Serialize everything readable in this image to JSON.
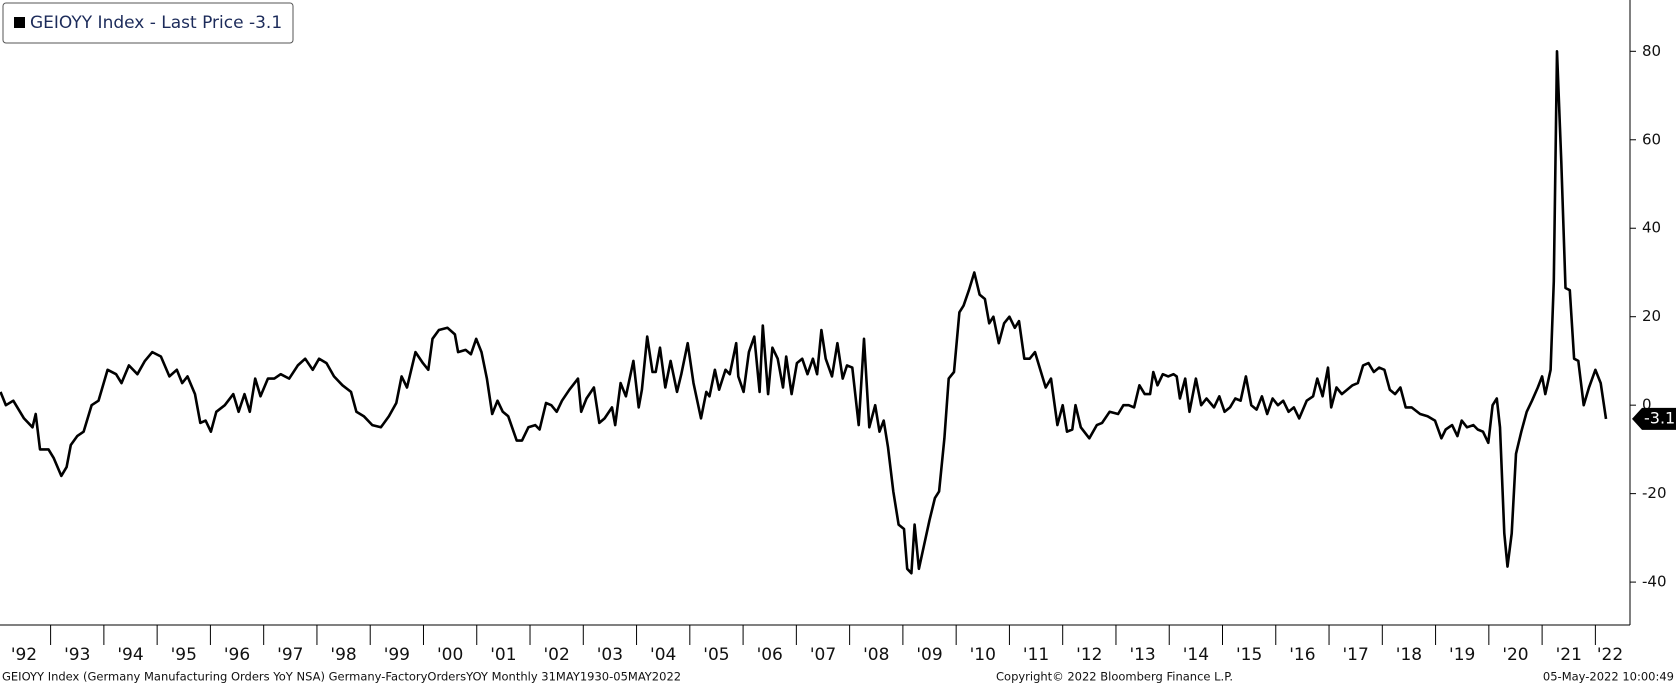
{
  "chart_data": {
    "type": "line",
    "series": [
      {
        "name": "GEIOYY Index - Last Price -3.1",
        "color": "#000000",
        "x": [
          1992.06,
          1992.16,
          1992.3,
          1992.5,
          1992.66,
          1992.72,
          1992.8,
          1992.96,
          1993.06,
          1993.2,
          1993.3,
          1993.38,
          1993.5,
          1993.62,
          1993.77,
          1993.9,
          1994.07,
          1994.23,
          1994.33,
          1994.47,
          1994.63,
          1994.77,
          1994.91,
          1995.07,
          1995.23,
          1995.37,
          1995.47,
          1995.57,
          1995.71,
          1995.81,
          1995.91,
          1996.01,
          1996.11,
          1996.27,
          1996.43,
          1996.53,
          1996.64,
          1996.74,
          1996.84,
          1996.94,
          1997.08,
          1997.2,
          1997.32,
          1997.48,
          1997.64,
          1997.78,
          1997.92,
          1998.04,
          1998.18,
          1998.32,
          1998.48,
          1998.64,
          1998.74,
          1998.88,
          1999.04,
          1999.2,
          1999.35,
          1999.49,
          1999.59,
          1999.69,
          1999.85,
          1999.99,
          2000.09,
          2000.17,
          2000.29,
          2000.45,
          2000.59,
          2000.65,
          2000.79,
          2000.89,
          2000.99,
          2001.09,
          2001.19,
          2001.29,
          2001.39,
          2001.49,
          2001.59,
          2001.75,
          2001.85,
          2001.97,
          2002.1,
          2002.18,
          2002.3,
          2002.4,
          2002.5,
          2002.6,
          2002.74,
          2002.9,
          2002.96,
          2003.06,
          2003.2,
          2003.3,
          2003.4,
          2003.54,
          2003.6,
          2003.7,
          2003.8,
          2003.94,
          2004.04,
          2004.1,
          2004.2,
          2004.3,
          2004.36,
          2004.44,
          2004.54,
          2004.64,
          2004.76,
          2004.84,
          2004.96,
          2005.07,
          2005.21,
          2005.31,
          2005.37,
          2005.47,
          2005.55,
          2005.67,
          2005.75,
          2005.87,
          2005.91,
          2006.01,
          2006.11,
          2006.21,
          2006.31,
          2006.37,
          2006.47,
          2006.55,
          2006.65,
          2006.75,
          2006.81,
          2006.91,
          2007.01,
          2007.11,
          2007.21,
          2007.31,
          2007.39,
          2007.47,
          2007.55,
          2007.67,
          2007.77,
          2007.87,
          2007.95,
          2008.05,
          2008.17,
          2008.27,
          2008.37,
          2008.48,
          2008.56,
          2008.64,
          2008.72,
          2008.82,
          2008.92,
          2009.02,
          2009.08,
          2009.16,
          2009.22,
          2009.3,
          2009.4,
          2009.5,
          2009.6,
          2009.68,
          2009.78,
          2009.86,
          2009.96,
          2010.06,
          2010.14,
          2010.24,
          2010.34,
          2010.44,
          2010.54,
          2010.62,
          2010.7,
          2010.8,
          2010.9,
          2011.0,
          2011.1,
          2011.18,
          2011.28,
          2011.38,
          2011.48,
          2011.58,
          2011.68,
          2011.78,
          2011.9,
          2012.0,
          2012.08,
          2012.18,
          2012.24,
          2012.34,
          2012.5,
          2012.64,
          2012.74,
          2012.88,
          2013.04,
          2013.14,
          2013.24,
          2013.34,
          2013.44,
          2013.54,
          2013.64,
          2013.7,
          2013.78,
          2013.88,
          2013.98,
          2014.08,
          2014.14,
          2014.2,
          2014.3,
          2014.38,
          2014.5,
          2014.6,
          2014.7,
          2014.84,
          2014.94,
          2015.04,
          2015.14,
          2015.24,
          2015.34,
          2015.44,
          2015.54,
          2015.64,
          2015.74,
          2015.84,
          2015.94,
          2016.04,
          2016.14,
          2016.24,
          2016.34,
          2016.44,
          2016.58,
          2016.7,
          2016.78,
          2016.88,
          2016.98,
          2017.04,
          2017.14,
          2017.24,
          2017.34,
          2017.44,
          2017.54,
          2017.64,
          2017.74,
          2017.84,
          2017.94,
          2018.04,
          2018.14,
          2018.24,
          2018.34,
          2018.44,
          2018.55,
          2018.71,
          2018.85,
          2018.99,
          2019.11,
          2019.19,
          2019.31,
          2019.41,
          2019.49,
          2019.59,
          2019.71,
          2019.79,
          2019.89,
          2019.99,
          2020.07,
          2020.15,
          2020.21,
          2020.29,
          2020.35,
          2020.43,
          2020.51,
          2020.61,
          2020.71,
          2020.81,
          2020.92,
          2021.0,
          2021.06,
          2021.16,
          2021.22,
          2021.28,
          2021.36,
          2021.44,
          2021.52,
          2021.6,
          2021.68,
          2021.78,
          2021.88,
          2022.0,
          2022.1,
          2022.2
        ],
        "values": [
          3,
          0,
          1,
          -3,
          -5,
          -2,
          -10,
          -10,
          -12,
          -16,
          -14,
          -9,
          -7,
          -6,
          0,
          1,
          8,
          7,
          5,
          9,
          7,
          10,
          12,
          11,
          6.5,
          8,
          5,
          6.5,
          2.5,
          -4,
          -3.5,
          -6,
          -1.5,
          0,
          2.5,
          -1.5,
          2.5,
          -1.5,
          6,
          2,
          6,
          6,
          7,
          6,
          9,
          10.5,
          8,
          10.5,
          9.5,
          6.5,
          4.5,
          3,
          -1.5,
          -2.5,
          -4.5,
          -5,
          -2.5,
          0.5,
          6.5,
          4,
          12,
          9.5,
          8,
          15,
          17,
          17.5,
          16,
          12,
          12.5,
          11.5,
          15,
          12,
          6,
          -2,
          1,
          -1.5,
          -2.5,
          -8,
          -8,
          -5,
          -4.5,
          -5.5,
          0.5,
          0,
          -1.5,
          1,
          3.5,
          6,
          -1.5,
          1.5,
          4,
          -4,
          -3,
          -0.5,
          -4.5,
          5,
          2,
          10,
          -0.5,
          3.5,
          15.5,
          7.5,
          7.5,
          13,
          4,
          10,
          3,
          7,
          14,
          5,
          -3,
          3,
          2,
          8,
          3.5,
          8,
          7,
          14,
          6.5,
          3,
          12,
          15.5,
          3,
          18,
          2.5,
          13,
          10.5,
          4,
          11,
          2.5,
          9.5,
          10.5,
          7,
          10.5,
          7,
          17,
          10.5,
          6.5,
          14,
          6,
          9,
          8.5,
          -4.5,
          15,
          -5,
          0,
          -6,
          -3.5,
          -9.5,
          -19.5,
          -27,
          -28,
          -37,
          -38,
          -27,
          -37,
          -31.5,
          -26,
          -21,
          -19.5,
          -7.5,
          6,
          7.5,
          21,
          22.5,
          26,
          30,
          25,
          24,
          18.5,
          20,
          14,
          18.5,
          20,
          17.5,
          19,
          10.5,
          10.5,
          12,
          8,
          4,
          6,
          -4.5,
          0,
          -6,
          -5.5,
          0,
          -5,
          -7.5,
          -4.5,
          -4,
          -1.5,
          -2,
          0,
          0,
          -0.5,
          4.5,
          2.5,
          2.5,
          7.5,
          4.5,
          7,
          6.5,
          7,
          6.5,
          1.5,
          6,
          -1.5,
          6,
          0,
          1.5,
          -0.5,
          2,
          -1.5,
          -0.5,
          1.5,
          1,
          6.5,
          0,
          -1,
          2,
          -2,
          1.5,
          0,
          1,
          -1.5,
          -0.5,
          -3,
          1,
          2,
          6,
          2,
          8.5,
          -0.5,
          4,
          2.5,
          3.5,
          4.5,
          5,
          9,
          9.5,
          7.5,
          8.5,
          8,
          3.5,
          2.5,
          4,
          -0.5,
          -0.5,
          -2,
          -2.5,
          -3.5,
          -7.5,
          -5.5,
          -4.5,
          -7,
          -3.5,
          -5,
          -4.5,
          -5.5,
          -6,
          -8.5,
          0,
          1.5,
          -5,
          -29,
          -36.5,
          -29,
          -11,
          -6,
          -1.5,
          1,
          4,
          6.5,
          2.5,
          8,
          28,
          80,
          55,
          26.5,
          26,
          10.5,
          10,
          0,
          4,
          8,
          5,
          -3.1
        ]
      }
    ],
    "last_price": -3.1,
    "xlim": [
      1992.05,
      2022.65
    ],
    "ylim": [
      -49.7,
      91.6
    ],
    "yticks": [
      80,
      60,
      40,
      20,
      0,
      -20,
      -40
    ],
    "xticks": [
      {
        "value": 1992,
        "label": "'92"
      },
      {
        "value": 1993,
        "label": "'93"
      },
      {
        "value": 1994,
        "label": "'94"
      },
      {
        "value": 1995,
        "label": "'95"
      },
      {
        "value": 1996,
        "label": "'96"
      },
      {
        "value": 1997,
        "label": "'97"
      },
      {
        "value": 1998,
        "label": "'98"
      },
      {
        "value": 1999,
        "label": "'99"
      },
      {
        "value": 2000,
        "label": "'00"
      },
      {
        "value": 2001,
        "label": "'01"
      },
      {
        "value": 2002,
        "label": "'02"
      },
      {
        "value": 2003,
        "label": "'03"
      },
      {
        "value": 2004,
        "label": "'04"
      },
      {
        "value": 2005,
        "label": "'05"
      },
      {
        "value": 2006,
        "label": "'06"
      },
      {
        "value": 2007,
        "label": "'07"
      },
      {
        "value": 2008,
        "label": "'08"
      },
      {
        "value": 2009,
        "label": "'09"
      },
      {
        "value": 2010,
        "label": "'10"
      },
      {
        "value": 2011,
        "label": "'11"
      },
      {
        "value": 2012,
        "label": "'12"
      },
      {
        "value": 2013,
        "label": "'13"
      },
      {
        "value": 2014,
        "label": "'14"
      },
      {
        "value": 2015,
        "label": "'15"
      },
      {
        "value": 2016,
        "label": "'16"
      },
      {
        "value": 2017,
        "label": "'17"
      },
      {
        "value": 2018,
        "label": "'18"
      },
      {
        "value": 2019,
        "label": "'19"
      },
      {
        "value": 2020,
        "label": "'20"
      },
      {
        "value": 2021,
        "label": "'21"
      },
      {
        "value": 2022,
        "label": "'22"
      }
    ],
    "footer": {
      "description": "GEIOYY Index (Germany Manufacturing Orders YoY NSA) Germany-FactoryOrdersYOY  Monthly 31MAY1930-05MAY2022",
      "copyright": "Copyright© 2022 Bloomberg Finance L.P.",
      "timestamp": "05-May-2022 10:00:49"
    }
  }
}
